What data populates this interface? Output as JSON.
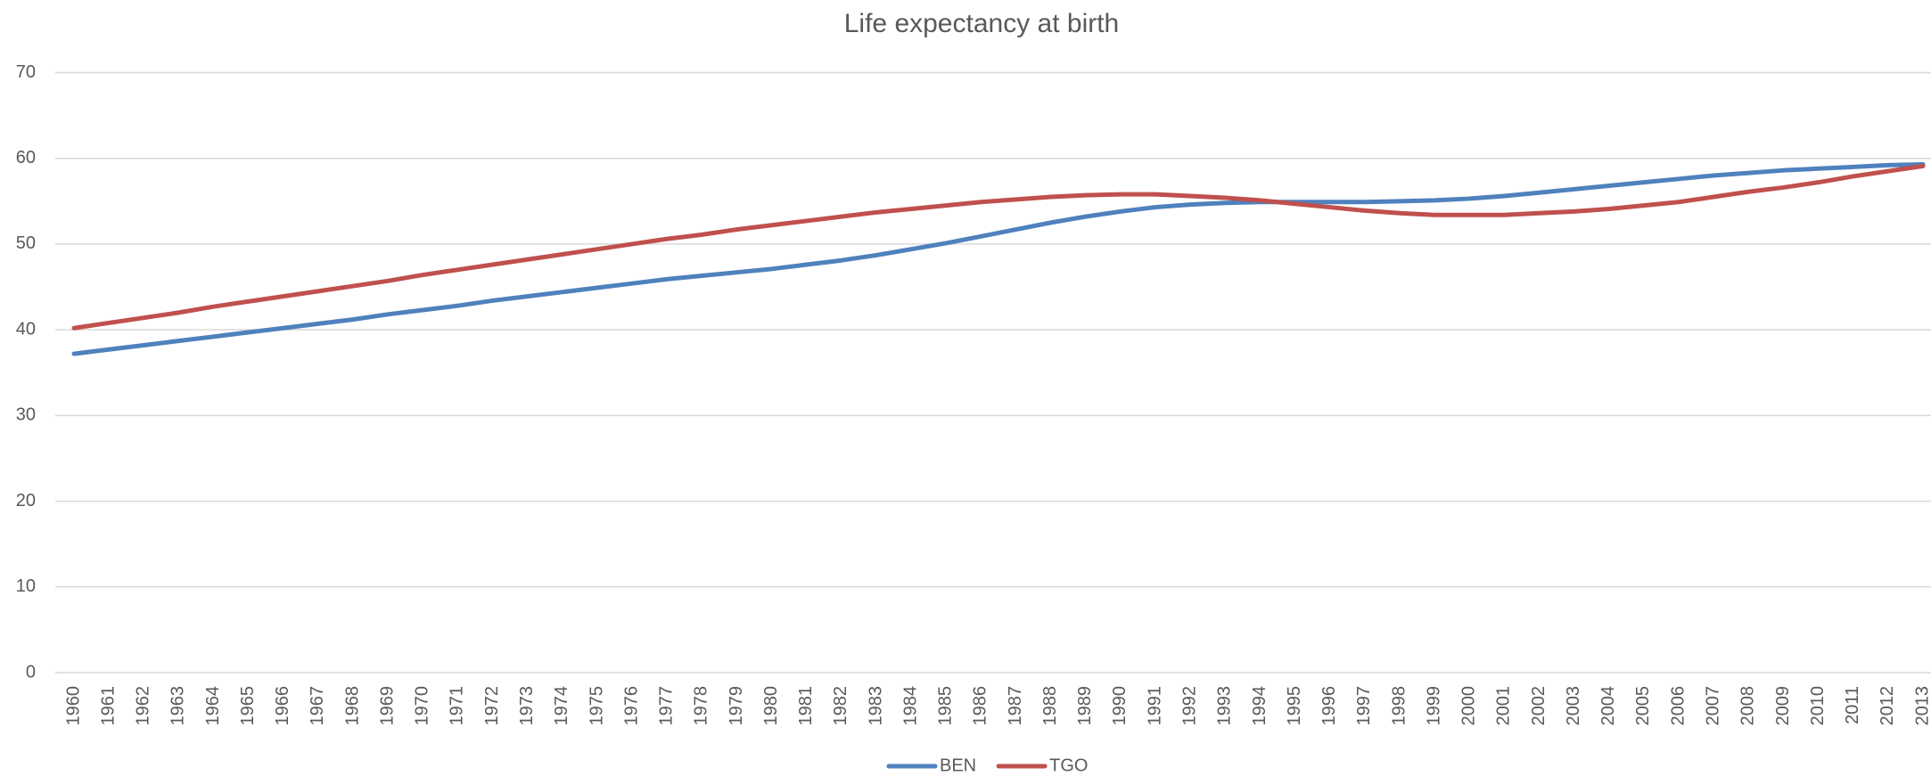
{
  "chart_data": {
    "type": "line",
    "title": "Life expectancy at birth",
    "categories": [
      "1960",
      "1961",
      "1962",
      "1963",
      "1964",
      "1965",
      "1966",
      "1967",
      "1968",
      "1969",
      "1970",
      "1971",
      "1972",
      "1973",
      "1974",
      "1975",
      "1976",
      "1977",
      "1978",
      "1979",
      "1980",
      "1981",
      "1982",
      "1983",
      "1984",
      "1985",
      "1986",
      "1987",
      "1988",
      "1989",
      "1990",
      "1991",
      "1992",
      "1993",
      "1994",
      "1995",
      "1996",
      "1997",
      "1998",
      "1999",
      "2000",
      "2001",
      "2002",
      "2003",
      "2004",
      "2005",
      "2006",
      "2007",
      "2008",
      "2009",
      "2010",
      "2011",
      "2012",
      "2013"
    ],
    "series": [
      {
        "name": "BEN",
        "color": "#4f81bd",
        "values": [
          37.2,
          37.7,
          38.2,
          38.7,
          39.2,
          39.7,
          40.2,
          40.7,
          41.2,
          41.8,
          42.3,
          42.8,
          43.4,
          43.9,
          44.4,
          44.9,
          45.4,
          45.9,
          46.3,
          46.7,
          47.1,
          47.6,
          48.1,
          48.7,
          49.4,
          50.1,
          50.9,
          51.7,
          52.5,
          53.2,
          53.8,
          54.3,
          54.6,
          54.8,
          54.9,
          54.9,
          54.9,
          54.9,
          55.0,
          55.1,
          55.3,
          55.6,
          56.0,
          56.4,
          56.8,
          57.2,
          57.6,
          58.0,
          58.3,
          58.6,
          58.8,
          59.0,
          59.2,
          59.3
        ]
      },
      {
        "name": "TGO",
        "color": "#c0504d",
        "values": [
          40.2,
          40.8,
          41.4,
          42.0,
          42.7,
          43.3,
          43.9,
          44.5,
          45.1,
          45.7,
          46.4,
          47.0,
          47.6,
          48.2,
          48.8,
          49.4,
          50.0,
          50.6,
          51.1,
          51.7,
          52.2,
          52.7,
          53.2,
          53.7,
          54.1,
          54.5,
          54.9,
          55.2,
          55.5,
          55.7,
          55.8,
          55.8,
          55.6,
          55.4,
          55.1,
          54.7,
          54.3,
          53.9,
          53.6,
          53.4,
          53.4,
          53.4,
          53.6,
          53.8,
          54.1,
          54.5,
          54.9,
          55.5,
          56.1,
          56.6,
          57.2,
          57.9,
          58.5,
          59.1
        ]
      }
    ],
    "ylim": [
      0,
      70
    ],
    "yticks": [
      0,
      10,
      20,
      30,
      40,
      50,
      60,
      70
    ],
    "grid": true,
    "legend": "bottom"
  }
}
